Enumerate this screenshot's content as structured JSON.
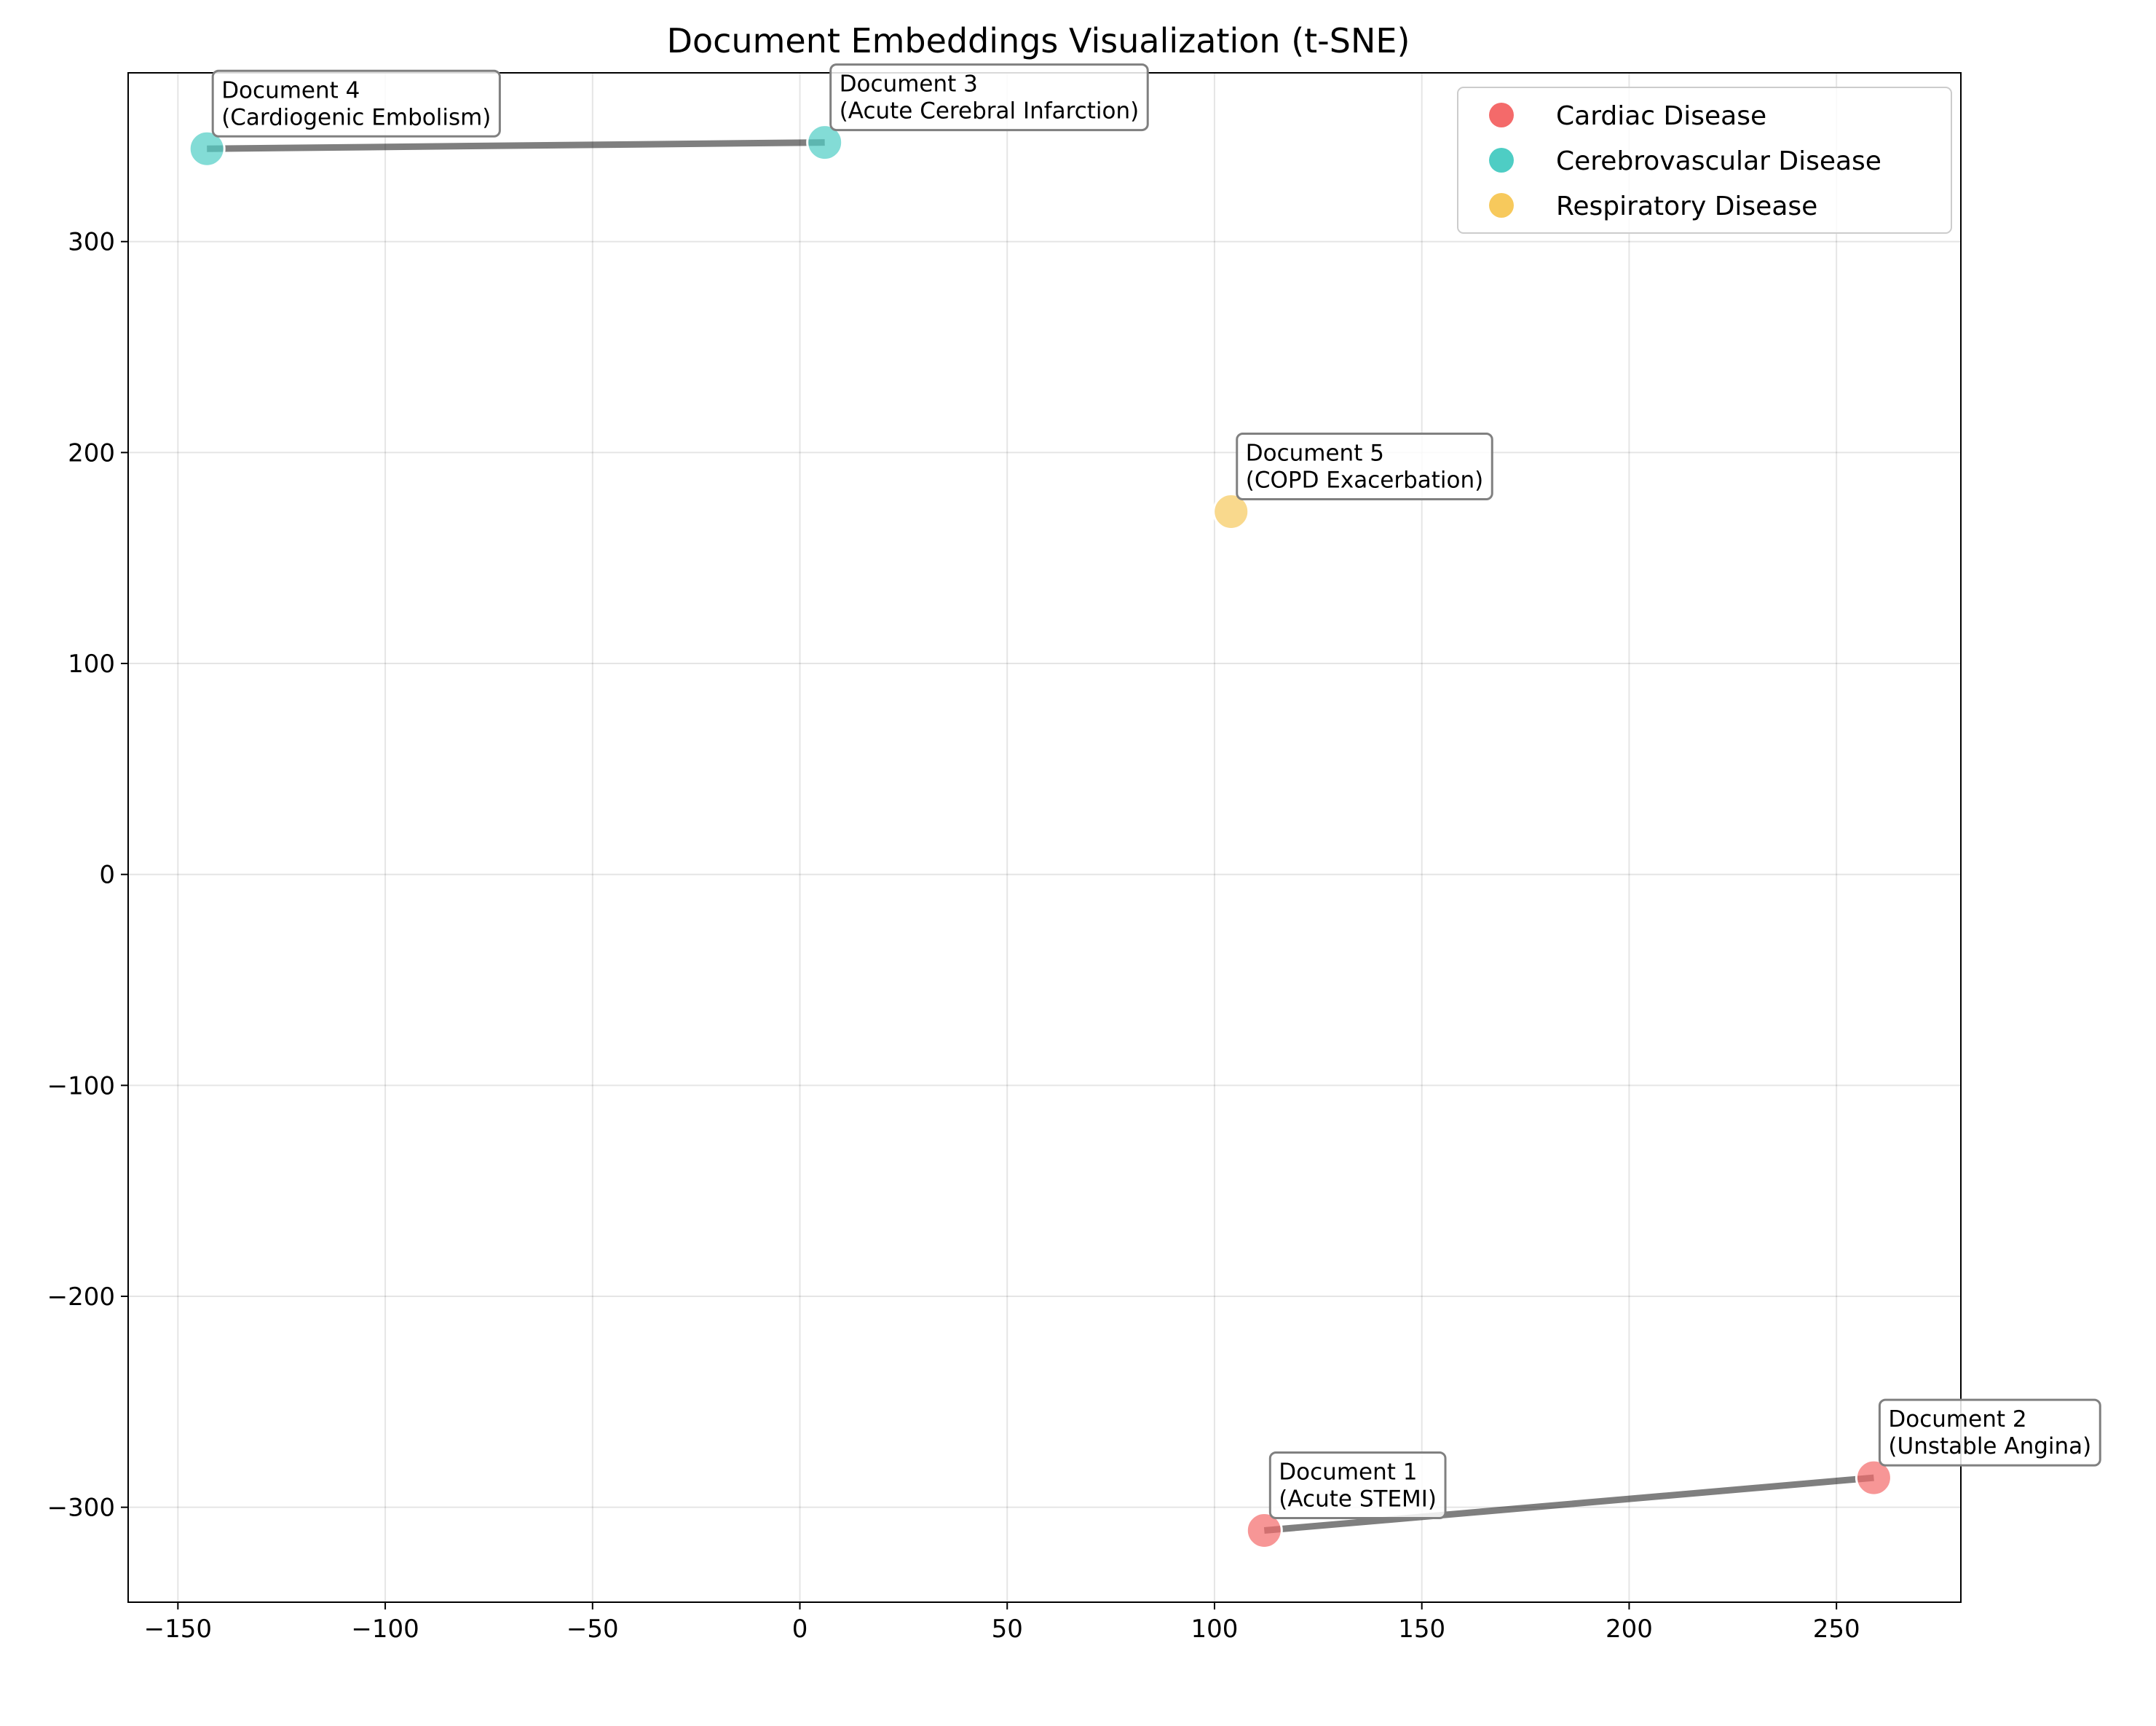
{
  "chart_data": {
    "type": "scatter",
    "title": "Document Embeddings Visualization (t-SNE)",
    "xlabel": "",
    "ylabel": "",
    "xlim": [
      -162,
      280
    ],
    "ylim": [
      -345,
      380
    ],
    "xticks": [
      -150,
      -100,
      -50,
      0,
      50,
      100,
      150,
      200,
      250
    ],
    "yticks": [
      -300,
      -200,
      -100,
      0,
      100,
      200,
      300
    ],
    "grid": true,
    "legend_position": "top-right",
    "series": [
      {
        "name": "Cardiac Disease",
        "color": "#f46a6a",
        "points": [
          {
            "x": 112,
            "y": -311,
            "label_line1": "Document 1",
            "label_line2": "(Acute STEMI)"
          },
          {
            "x": 259,
            "y": -286,
            "label_line1": "Document 2",
            "label_line2": "(Unstable Angina)"
          }
        ]
      },
      {
        "name": "Cerebrovascular Disease",
        "color": "#4ecdc4",
        "points": [
          {
            "x": 6,
            "y": 347,
            "label_line1": "Document 3",
            "label_line2": "(Acute Cerebral Infarction)"
          },
          {
            "x": -143,
            "y": 344,
            "label_line1": "Document 4",
            "label_line2": "(Cardiogenic Embolism)"
          }
        ]
      },
      {
        "name": "Respiratory Disease",
        "color": "#f7c95c",
        "points": [
          {
            "x": 104,
            "y": 172,
            "label_line1": "Document 5",
            "label_line2": "(COPD Exacerbation)"
          }
        ]
      }
    ],
    "connections": [
      {
        "from": [
          -143,
          344
        ],
        "to": [
          6,
          347
        ]
      },
      {
        "from": [
          112,
          -311
        ],
        "to": [
          259,
          -286
        ]
      }
    ]
  }
}
